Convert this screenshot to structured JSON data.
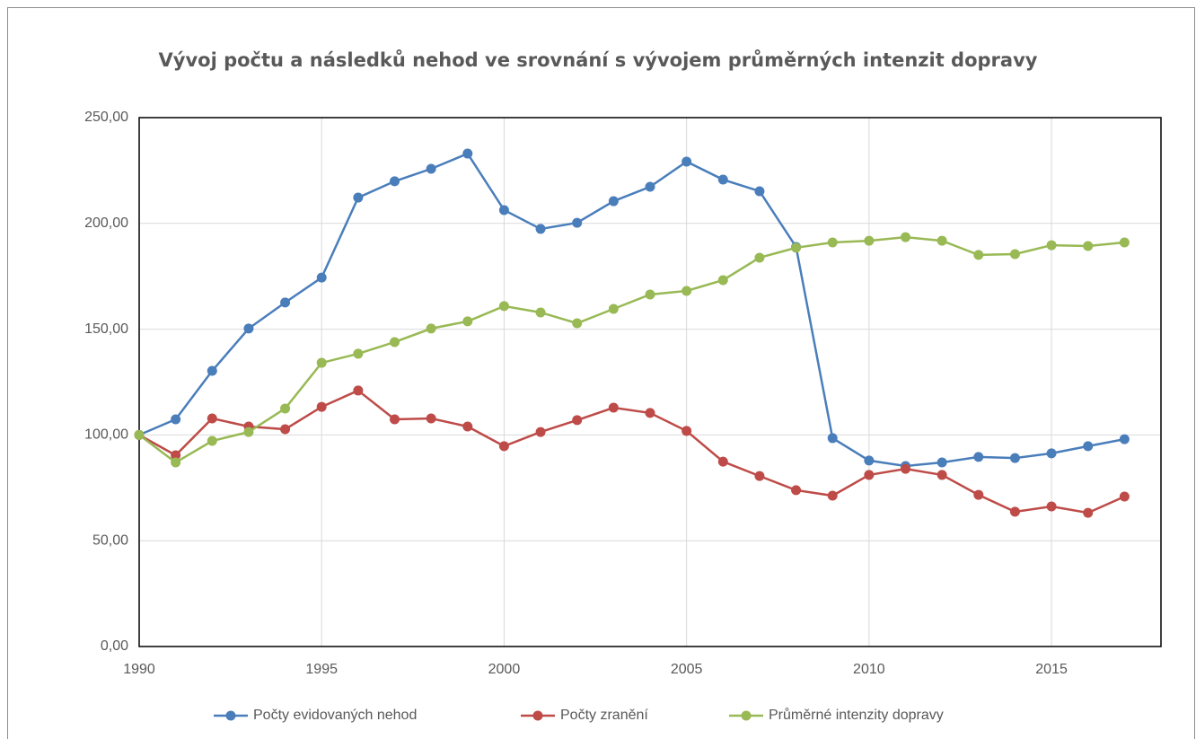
{
  "chart_data": {
    "type": "line",
    "title": "Vývoj počtu a následků nehod ve srovnání s vývojem průměrných intenzit dopravy",
    "x": [
      1990,
      1991,
      1992,
      1993,
      1994,
      1995,
      1996,
      1997,
      1998,
      1999,
      2000,
      2001,
      2002,
      2003,
      2004,
      2005,
      2006,
      2007,
      2008,
      2009,
      2010,
      2011,
      2012,
      2013,
      2014,
      2015,
      2016,
      2017
    ],
    "series": [
      {
        "name": "Počty evidovaných nehod",
        "color": "#4a7ebb",
        "values": [
          100,
          107.4,
          130.3,
          150.3,
          162.6,
          174.4,
          212.2,
          219.9,
          225.8,
          233.0,
          206.3,
          197.4,
          200.3,
          210.5,
          217.3,
          229.2,
          220.7,
          215.2,
          188.9,
          98.5,
          87.9,
          85.3,
          87.0,
          89.6,
          89.1,
          91.3,
          94.7,
          98.0
        ]
      },
      {
        "name": "Počty zranění",
        "color": "#be4b48",
        "values": [
          100,
          90.4,
          107.8,
          104.0,
          102.7,
          113.3,
          121.0,
          107.4,
          107.8,
          104.0,
          94.7,
          101.4,
          107.0,
          112.9,
          110.4,
          101.9,
          87.4,
          80.6,
          73.9,
          71.3,
          81.1,
          84.0,
          81.1,
          71.7,
          63.7,
          66.2,
          63.2,
          70.9
        ]
      },
      {
        "name": "Průměrné intenzity dopravy",
        "color": "#98b954",
        "values": [
          100,
          87.0,
          97.2,
          101.4,
          112.5,
          134.1,
          138.4,
          143.9,
          150.3,
          153.7,
          160.9,
          157.9,
          152.8,
          159.6,
          166.4,
          168.1,
          173.2,
          183.8,
          188.5,
          191.0,
          191.8,
          193.5,
          191.8,
          185.1,
          185.5,
          189.7,
          189.3,
          191.0
        ]
      }
    ],
    "xlim": [
      1990,
      2018
    ],
    "xticks": [
      1990,
      1995,
      2000,
      2005,
      2010,
      2015
    ],
    "ylim": [
      0,
      250
    ],
    "yticks": [
      {
        "value": 0,
        "label": "0,00"
      },
      {
        "value": 50,
        "label": "50,00"
      },
      {
        "value": 100,
        "label": "100,00"
      },
      {
        "value": 150,
        "label": "150,00"
      },
      {
        "value": 200,
        "label": "200,00"
      },
      {
        "value": 250,
        "label": "250,00"
      }
    ],
    "grid": true,
    "legend": "bottom"
  }
}
